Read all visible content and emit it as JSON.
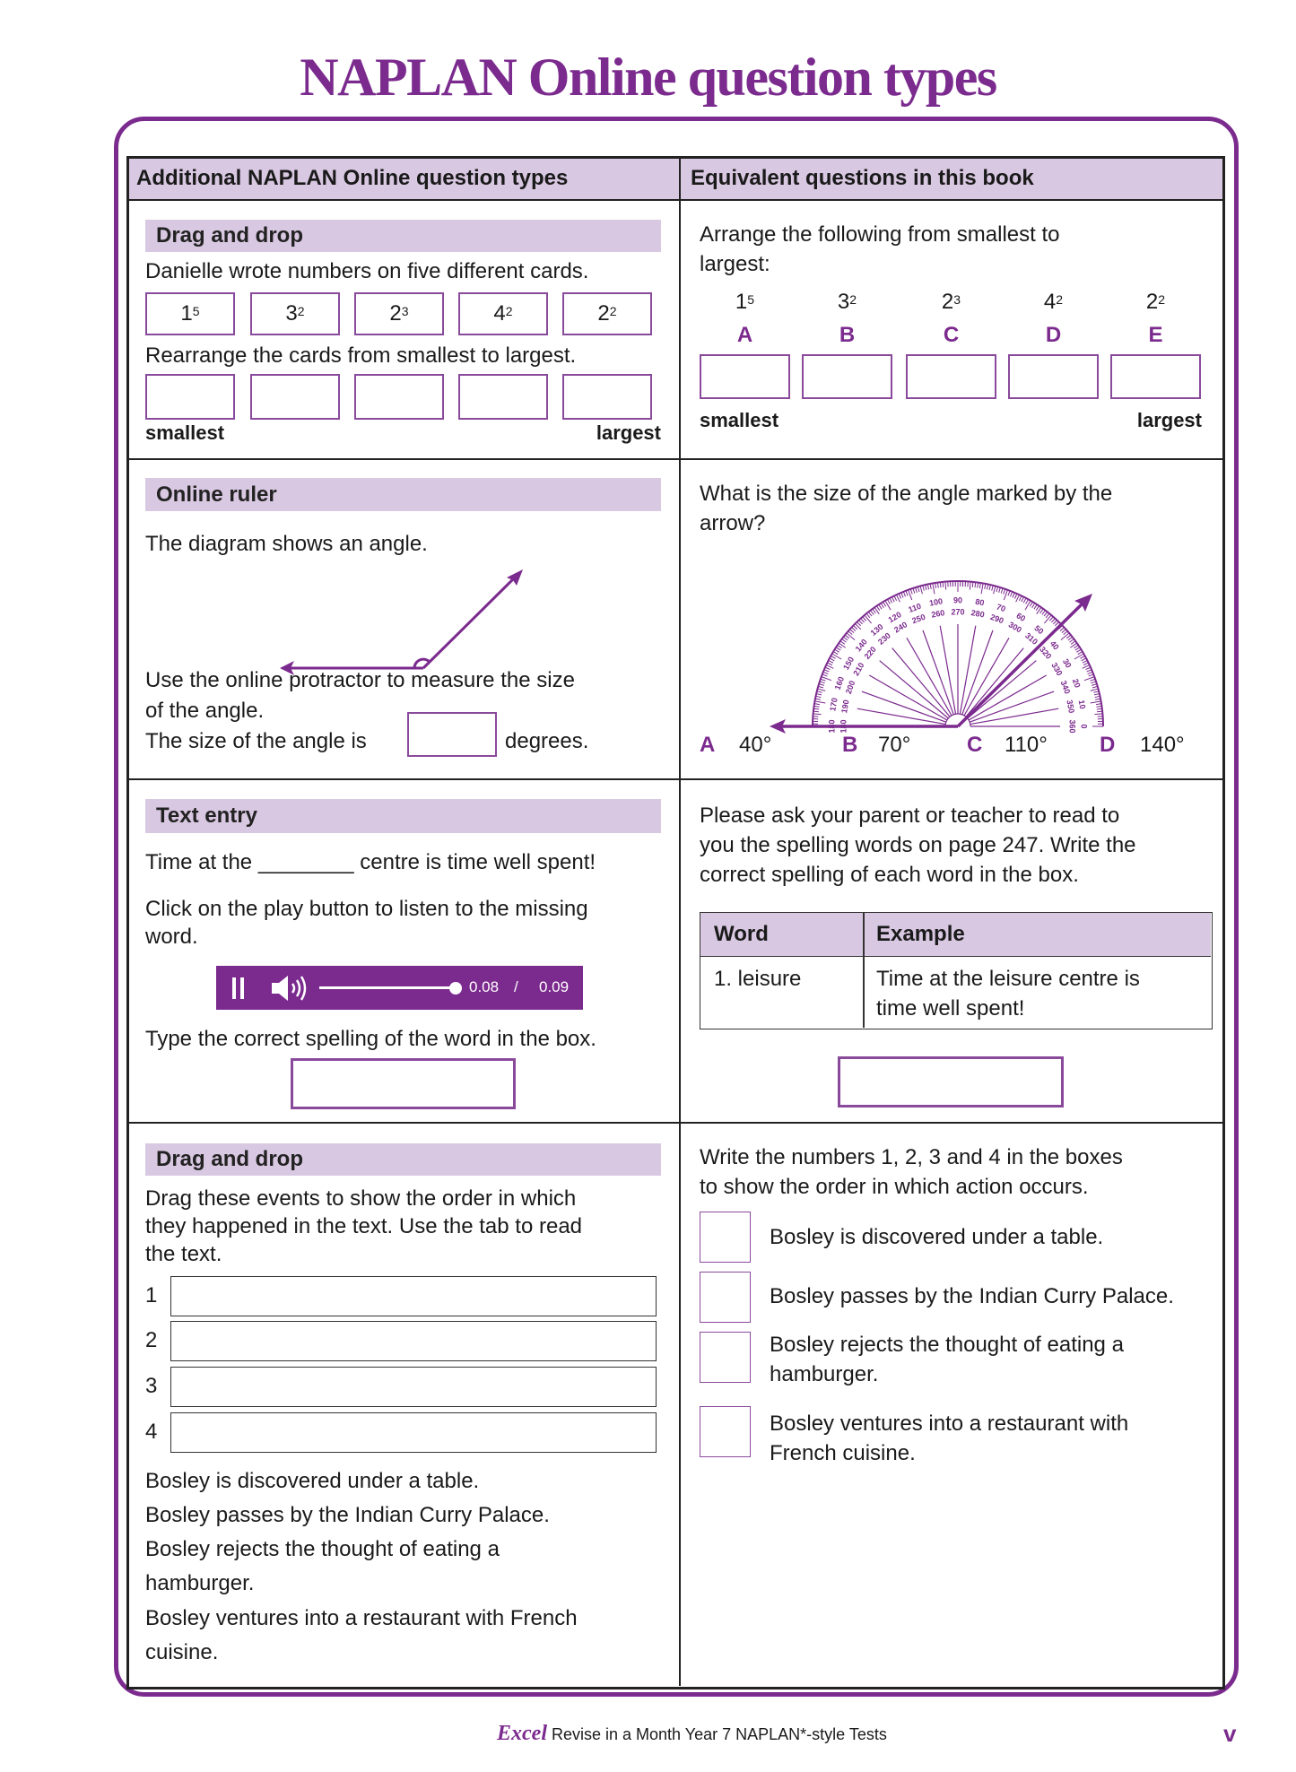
{
  "page_title": "NAPLAN Online question types",
  "colors": {
    "accent": "#7b2a8e",
    "header_bg": "#d9c8e2"
  },
  "table": {
    "headers": [
      "Additional NAPLAN Online question types",
      "Equivalent questions in this book"
    ]
  },
  "row1": {
    "left": {
      "heading": "Drag and drop",
      "prompt": "Danielle wrote numbers on five different cards.",
      "cards": [
        {
          "base": "1",
          "exp": "5"
        },
        {
          "base": "3",
          "exp": "2"
        },
        {
          "base": "2",
          "exp": "3"
        },
        {
          "base": "4",
          "exp": "2"
        },
        {
          "base": "2",
          "exp": "2"
        }
      ],
      "instruction": "Rearrange the cards from smallest to largest.",
      "smallest": "smallest",
      "largest": "largest"
    },
    "right": {
      "prompt_line1": "Arrange the following from smallest to",
      "prompt_line2": "largest:",
      "items": [
        {
          "base": "1",
          "exp": "5",
          "letter": "A"
        },
        {
          "base": "3",
          "exp": "2",
          "letter": "B"
        },
        {
          "base": "2",
          "exp": "3",
          "letter": "C"
        },
        {
          "base": "4",
          "exp": "2",
          "letter": "D"
        },
        {
          "base": "2",
          "exp": "2",
          "letter": "E"
        }
      ],
      "smallest": "smallest",
      "largest": "largest"
    }
  },
  "row2": {
    "left": {
      "heading": "Online ruler",
      "line1": "The diagram shows an angle.",
      "line2": "Use the online protractor to measure the size",
      "line3": "of the angle.",
      "line4": "The size of the angle is",
      "line4_after": "degrees."
    },
    "right": {
      "prompt_line1": "What is the size of the angle marked by the",
      "prompt_line2": "arrow?",
      "protractor_outer_labels": [
        "180",
        "170",
        "160",
        "150",
        "140",
        "130",
        "120",
        "110",
        "100",
        "90",
        "80",
        "70",
        "60",
        "50",
        "40",
        "30",
        "20",
        "10",
        "0"
      ],
      "protractor_inner_labels": [
        "180",
        "190",
        "200",
        "210",
        "220",
        "230",
        "240",
        "250",
        "260",
        "270",
        "280",
        "290",
        "300",
        "310",
        "320",
        "330",
        "340",
        "350",
        "360"
      ],
      "options": [
        {
          "letter": "A",
          "value": "40°"
        },
        {
          "letter": "B",
          "value": "70°"
        },
        {
          "letter": "C",
          "value": "110°"
        },
        {
          "letter": "D",
          "value": "140°"
        }
      ]
    }
  },
  "row3": {
    "left": {
      "heading": "Text entry",
      "sentence": "Time at the ________ centre is time well spent!",
      "line2": "Click on the play button to listen to the missing",
      "line3": "word.",
      "audio": {
        "current": "0.08",
        "separator": "/",
        "total": "0.09",
        "progress": 0.89
      },
      "line4": "Type the correct spelling of the word in the box."
    },
    "right": {
      "line1": "Please ask your parent or teacher to read to",
      "line2": "you the spelling words on page 247. Write the",
      "line3": "correct spelling of each word in the box.",
      "col_word": "Word",
      "col_example": "Example",
      "word": "1. leisure",
      "example_line1": "Time at the leisure centre is",
      "example_line2": "time well spent!"
    }
  },
  "row4": {
    "left": {
      "heading": "Drag and drop",
      "line1": "Drag these events to show the order in which",
      "line2": "they happened in the text. Use the tab to read",
      "line3": "the text.",
      "numbers": [
        "1",
        "2",
        "3",
        "4"
      ],
      "events": [
        "Bosley is discovered under a table.",
        "Bosley passes by the Indian Curry Palace.",
        "Bosley rejects the thought of eating a",
        "hamburger.",
        "Bosley ventures into a restaurant with French",
        "cuisine."
      ]
    },
    "right": {
      "line1": "Write the numbers 1, 2, 3 and 4 in the boxes",
      "line2": "to show the order in which action occurs.",
      "items": [
        [
          "Bosley is discovered under a table."
        ],
        [
          "Bosley passes by the Indian Curry Palace."
        ],
        [
          "Bosley rejects the thought of eating a",
          "hamburger."
        ],
        [
          "Bosley ventures into a restaurant with",
          "French cuisine."
        ]
      ]
    }
  },
  "footer": {
    "brand": "Excel",
    "text": "Revise in a Month Year 7 NAPLAN*-style Tests",
    "page": "v"
  }
}
